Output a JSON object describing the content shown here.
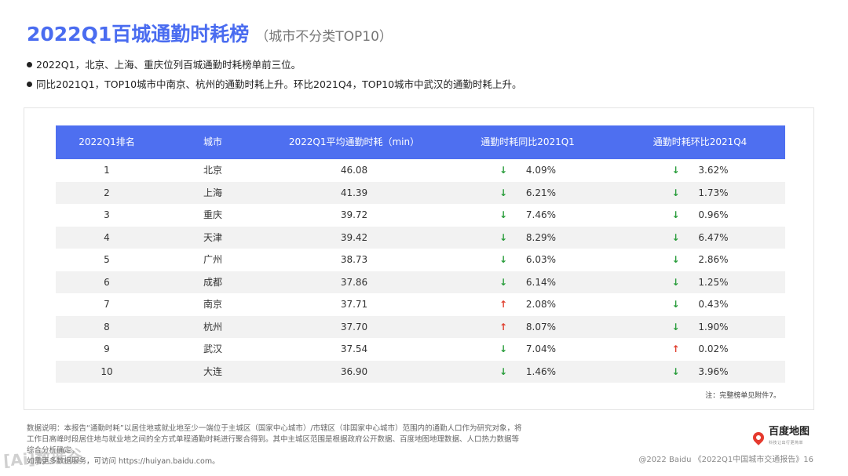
{
  "title": "2022Q1百城通勤时耗榜",
  "subtitle": "（城市不分类TOP10）",
  "bullets": [
    "2022Q1，北京、上海、重庆位列百城通勤时耗榜单前三位。",
    "同比2021Q1，TOP10城市中南京、杭州的通勤时耗上升。环比2021Q4，TOP10城市中武汉的通勤时耗上升。"
  ],
  "table": {
    "headers": [
      "2022Q1排名",
      "城市",
      "2022Q1平均通勤时耗（min）",
      "通勤时耗同比2021Q1",
      "通勤时耗环比2021Q4"
    ],
    "rows": [
      {
        "rank": "1",
        "city": "北京",
        "time": "46.08",
        "yoy_dir": "down",
        "yoy_arrow": "↓",
        "yoy": "4.09%",
        "qoq_dir": "down",
        "qoq_arrow": "↓",
        "qoq": "3.62%"
      },
      {
        "rank": "2",
        "city": "上海",
        "time": "41.39",
        "yoy_dir": "down",
        "yoy_arrow": "↓",
        "yoy": "6.21%",
        "qoq_dir": "down",
        "qoq_arrow": "↓",
        "qoq": "1.73%"
      },
      {
        "rank": "3",
        "city": "重庆",
        "time": "39.72",
        "yoy_dir": "down",
        "yoy_arrow": "↓",
        "yoy": "7.46%",
        "qoq_dir": "down",
        "qoq_arrow": "↓",
        "qoq": "0.96%"
      },
      {
        "rank": "4",
        "city": "天津",
        "time": "39.42",
        "yoy_dir": "down",
        "yoy_arrow": "↓",
        "yoy": "8.29%",
        "qoq_dir": "down",
        "qoq_arrow": "↓",
        "qoq": "6.47%"
      },
      {
        "rank": "5",
        "city": "广州",
        "time": "38.73",
        "yoy_dir": "down",
        "yoy_arrow": "↓",
        "yoy": "6.03%",
        "qoq_dir": "down",
        "qoq_arrow": "↓",
        "qoq": "2.86%"
      },
      {
        "rank": "6",
        "city": "成都",
        "time": "37.86",
        "yoy_dir": "down",
        "yoy_arrow": "↓",
        "yoy": "6.14%",
        "qoq_dir": "down",
        "qoq_arrow": "↓",
        "qoq": "1.25%"
      },
      {
        "rank": "7",
        "city": "南京",
        "time": "37.71",
        "yoy_dir": "up",
        "yoy_arrow": "↑",
        "yoy": "2.08%",
        "qoq_dir": "down",
        "qoq_arrow": "↓",
        "qoq": "0.43%"
      },
      {
        "rank": "8",
        "city": "杭州",
        "time": "37.70",
        "yoy_dir": "up",
        "yoy_arrow": "↑",
        "yoy": "8.07%",
        "qoq_dir": "down",
        "qoq_arrow": "↓",
        "qoq": "1.90%"
      },
      {
        "rank": "9",
        "city": "武汉",
        "time": "37.54",
        "yoy_dir": "down",
        "yoy_arrow": "↓",
        "yoy": "7.04%",
        "qoq_dir": "up",
        "qoq_arrow": "↑",
        "qoq": "0.02%"
      },
      {
        "rank": "10",
        "city": "大连",
        "time": "36.90",
        "yoy_dir": "down",
        "yoy_arrow": "↓",
        "yoy": "1.46%",
        "qoq_dir": "down",
        "qoq_arrow": "↓",
        "qoq": "3.96%"
      }
    ],
    "note": "注：完整榜单见附件7。"
  },
  "footnote_lines": [
    "数据说明：本报告“通勤时耗”以居住地或就业地至少一端位于主城区（国家中心城市）/市辖区（非国家中心城市）范围内的通勤人口作为研究对象，将",
    "工作日高峰时段居住地与就业地之间的全方式单程通勤时耗进行聚合得到。其中主城区范围是根据政府公开数据、百度地图地理数据、人口热力数据等",
    "综合分析确定。",
    "如需更多数据服务，可访问 https://huiyan.baidu.com。"
  ],
  "copyright": "@2022 Baidu 《2022Q1中国城市交通报告》16",
  "logo": {
    "name": "百度地图",
    "tagline": "科技让出行更简单"
  },
  "watermark": "[Ai]数据谷",
  "colors": {
    "accent": "#4e6ff0",
    "down": "#2a9d3c",
    "up": "#e0402f"
  }
}
